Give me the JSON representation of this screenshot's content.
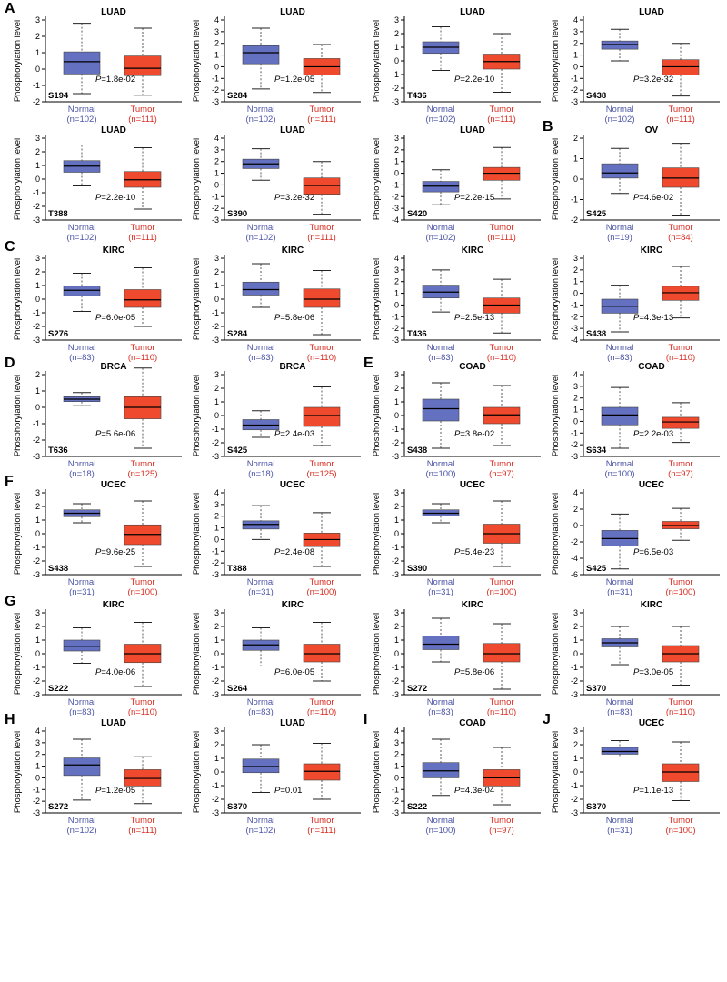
{
  "figure": {
    "ylabel": "Phosphorylation level",
    "group_labels": [
      "Normal",
      "Tumor"
    ],
    "colors": {
      "normal": "#6470c0",
      "tumor": "#f04a2e",
      "normal_text": "#4b54a6",
      "tumor_text": "#d92b1f"
    }
  },
  "chart_data": [
    {
      "type": "box",
      "panel": "A",
      "title": "LUAD",
      "site": "S194",
      "p": "1.8e-02",
      "yticks": [
        -2,
        -1,
        0,
        1,
        2,
        3
      ],
      "ylim": [
        -2,
        3
      ],
      "n": [
        102,
        111
      ],
      "boxes": [
        {
          "wl": -1.5,
          "q1": -0.3,
          "med": 0.45,
          "q3": 1.05,
          "wh": 2.8
        },
        {
          "wl": -1.6,
          "q1": -0.4,
          "med": 0.05,
          "q3": 0.8,
          "wh": 2.5
        }
      ]
    },
    {
      "type": "box",
      "panel": "",
      "title": "LUAD",
      "site": "S284",
      "p": "1.2e-05",
      "yticks": [
        -3,
        -2,
        -1,
        0,
        1,
        2,
        3,
        4
      ],
      "ylim": [
        -3,
        4
      ],
      "n": [
        102,
        111
      ],
      "boxes": [
        {
          "wl": -1.9,
          "q1": 0.25,
          "med": 1.2,
          "q3": 1.8,
          "wh": 3.3
        },
        {
          "wl": -2.2,
          "q1": -0.7,
          "med": 0.0,
          "q3": 0.7,
          "wh": 1.9
        }
      ]
    },
    {
      "type": "box",
      "panel": "",
      "title": "LUAD",
      "site": "T436",
      "p": "2.2e-10",
      "yticks": [
        -3,
        -2,
        -1,
        0,
        1,
        2,
        3
      ],
      "ylim": [
        -3,
        3
      ],
      "n": [
        102,
        111
      ],
      "boxes": [
        {
          "wl": -0.7,
          "q1": 0.55,
          "med": 1.0,
          "q3": 1.4,
          "wh": 2.5
        },
        {
          "wl": -2.3,
          "q1": -0.6,
          "med": -0.05,
          "q3": 0.5,
          "wh": 2.0
        }
      ]
    },
    {
      "type": "box",
      "panel": "",
      "title": "LUAD",
      "site": "S438",
      "p": "3.2e-32",
      "yticks": [
        -3,
        -2,
        -1,
        0,
        1,
        2,
        3,
        4
      ],
      "ylim": [
        -3,
        4
      ],
      "n": [
        102,
        111
      ],
      "boxes": [
        {
          "wl": 0.5,
          "q1": 1.5,
          "med": 1.9,
          "q3": 2.2,
          "wh": 3.2
        },
        {
          "wl": -2.5,
          "q1": -0.7,
          "med": 0.0,
          "q3": 0.6,
          "wh": 2.0
        }
      ]
    },
    {
      "type": "box",
      "panel": "",
      "title": "LUAD",
      "site": "T388",
      "p": "2.2e-10",
      "yticks": [
        -3,
        -2,
        -1,
        0,
        1,
        2,
        3
      ],
      "ylim": [
        -3,
        3
      ],
      "n": [
        102,
        111
      ],
      "boxes": [
        {
          "wl": -0.5,
          "q1": 0.5,
          "med": 0.95,
          "q3": 1.35,
          "wh": 2.5
        },
        {
          "wl": -2.2,
          "q1": -0.6,
          "med": -0.05,
          "q3": 0.55,
          "wh": 2.3
        }
      ]
    },
    {
      "type": "box",
      "panel": "",
      "title": "LUAD",
      "site": "S390",
      "p": "3.2e-32",
      "yticks": [
        -3,
        -2,
        -1,
        0,
        1,
        2,
        3,
        4
      ],
      "ylim": [
        -3,
        4
      ],
      "n": [
        102,
        111
      ],
      "boxes": [
        {
          "wl": 0.4,
          "q1": 1.4,
          "med": 1.8,
          "q3": 2.2,
          "wh": 3.1
        },
        {
          "wl": -2.5,
          "q1": -0.8,
          "med": -0.05,
          "q3": 0.6,
          "wh": 2.0
        }
      ]
    },
    {
      "type": "box",
      "panel": "",
      "title": "LUAD",
      "site": "S420",
      "p": "2.2e-15",
      "yticks": [
        -4,
        -3,
        -2,
        -1,
        0,
        1,
        2,
        3
      ],
      "ylim": [
        -4,
        3
      ],
      "n": [
        102,
        111
      ],
      "boxes": [
        {
          "wl": -2.7,
          "q1": -1.6,
          "med": -1.1,
          "q3": -0.7,
          "wh": 0.3
        },
        {
          "wl": -2.2,
          "q1": -0.6,
          "med": 0.0,
          "q3": 0.5,
          "wh": 2.2
        }
      ]
    },
    {
      "type": "box",
      "panel": "B",
      "title": "OV",
      "site": "S425",
      "p": "4.6e-02",
      "yticks": [
        -2,
        -1,
        0,
        1,
        2
      ],
      "ylim": [
        -2,
        2
      ],
      "n": [
        19,
        84
      ],
      "boxes": [
        {
          "wl": -0.7,
          "q1": 0.05,
          "med": 0.3,
          "q3": 0.75,
          "wh": 1.5
        },
        {
          "wl": -1.8,
          "q1": -0.4,
          "med": 0.05,
          "q3": 0.55,
          "wh": 1.75
        }
      ]
    },
    {
      "type": "box",
      "panel": "C",
      "title": "KIRC",
      "site": "S276",
      "p": "6.0e-05",
      "yticks": [
        -3,
        -2,
        -1,
        0,
        1,
        2,
        3
      ],
      "ylim": [
        -3,
        3
      ],
      "n": [
        83,
        110
      ],
      "boxes": [
        {
          "wl": -0.9,
          "q1": 0.25,
          "med": 0.65,
          "q3": 0.95,
          "wh": 1.9
        },
        {
          "wl": -2.0,
          "q1": -0.6,
          "med": -0.05,
          "q3": 0.7,
          "wh": 2.3
        }
      ]
    },
    {
      "type": "box",
      "panel": "",
      "title": "KIRC",
      "site": "S284",
      "p": "5.8e-06",
      "yticks": [
        -3,
        -2,
        -1,
        0,
        1,
        2,
        3
      ],
      "ylim": [
        -3,
        3
      ],
      "n": [
        83,
        110
      ],
      "boxes": [
        {
          "wl": -0.6,
          "q1": 0.3,
          "med": 0.7,
          "q3": 1.25,
          "wh": 2.6
        },
        {
          "wl": -2.6,
          "q1": -0.6,
          "med": 0.0,
          "q3": 0.75,
          "wh": 2.1
        }
      ]
    },
    {
      "type": "box",
      "panel": "",
      "title": "KIRC",
      "site": "T436",
      "p": "2.5e-13",
      "yticks": [
        -3,
        -2,
        -1,
        0,
        1,
        2,
        3,
        4
      ],
      "ylim": [
        -3,
        4
      ],
      "n": [
        83,
        110
      ],
      "boxes": [
        {
          "wl": -0.6,
          "q1": 0.6,
          "med": 1.1,
          "q3": 1.7,
          "wh": 3.0
        },
        {
          "wl": -2.4,
          "q1": -0.7,
          "med": 0.0,
          "q3": 0.6,
          "wh": 2.2
        }
      ]
    },
    {
      "type": "box",
      "panel": "",
      "title": "KIRC",
      "site": "S438",
      "p": "4.3e-13",
      "yticks": [
        -4,
        -3,
        -2,
        -1,
        0,
        1,
        2,
        3
      ],
      "ylim": [
        -4,
        3
      ],
      "n": [
        83,
        110
      ],
      "boxes": [
        {
          "wl": -3.3,
          "q1": -1.7,
          "med": -1.1,
          "q3": -0.5,
          "wh": 0.7
        },
        {
          "wl": -2.1,
          "q1": -0.6,
          "med": 0.05,
          "q3": 0.6,
          "wh": 2.3
        }
      ]
    },
    {
      "type": "box",
      "panel": "D",
      "title": "BRCA",
      "site": "T636",
      "p": "5.6e-06",
      "yticks": [
        -3,
        -2,
        -1,
        0,
        1,
        2
      ],
      "ylim": [
        -3,
        2
      ],
      "n": [
        18,
        125
      ],
      "boxes": [
        {
          "wl": 0.1,
          "q1": 0.35,
          "med": 0.5,
          "q3": 0.65,
          "wh": 0.9
        },
        {
          "wl": -2.5,
          "q1": -0.7,
          "med": 0.0,
          "q3": 0.65,
          "wh": 2.4
        }
      ]
    },
    {
      "type": "box",
      "panel": "",
      "title": "BRCA",
      "site": "S425",
      "p": "2.4e-03",
      "yticks": [
        -3,
        -2,
        -1,
        0,
        1,
        2,
        3
      ],
      "ylim": [
        -3,
        3
      ],
      "n": [
        18,
        125
      ],
      "boxes": [
        {
          "wl": -1.6,
          "q1": -1.05,
          "med": -0.7,
          "q3": -0.3,
          "wh": 0.35
        },
        {
          "wl": -2.2,
          "q1": -0.8,
          "med": 0.0,
          "q3": 0.6,
          "wh": 2.1
        }
      ]
    },
    {
      "type": "box",
      "panel": "E",
      "title": "COAD",
      "site": "S438",
      "p": "3.8e-02",
      "yticks": [
        -3,
        -2,
        -1,
        0,
        1,
        2,
        3
      ],
      "ylim": [
        -3,
        3
      ],
      "n": [
        100,
        97
      ],
      "boxes": [
        {
          "wl": -2.4,
          "q1": -0.4,
          "med": 0.5,
          "q3": 1.2,
          "wh": 2.4
        },
        {
          "wl": -2.2,
          "q1": -0.6,
          "med": 0.05,
          "q3": 0.6,
          "wh": 2.2
        }
      ]
    },
    {
      "type": "box",
      "panel": "",
      "title": "COAD",
      "site": "S634",
      "p": "2.2e-03",
      "yticks": [
        -3,
        -2,
        -1,
        0,
        1,
        2,
        3,
        4
      ],
      "ylim": [
        -3,
        4
      ],
      "n": [
        100,
        97
      ],
      "boxes": [
        {
          "wl": -2.3,
          "q1": -0.3,
          "med": 0.55,
          "q3": 1.2,
          "wh": 2.9
        },
        {
          "wl": -1.8,
          "q1": -0.6,
          "med": -0.05,
          "q3": 0.35,
          "wh": 1.6
        }
      ]
    },
    {
      "type": "box",
      "panel": "F",
      "title": "UCEC",
      "site": "S438",
      "p": "9.6e-25",
      "yticks": [
        -3,
        -2,
        -1,
        0,
        1,
        2,
        3
      ],
      "ylim": [
        -3,
        3
      ],
      "n": [
        31,
        100
      ],
      "boxes": [
        {
          "wl": 0.8,
          "q1": 1.25,
          "med": 1.5,
          "q3": 1.75,
          "wh": 2.2
        },
        {
          "wl": -2.4,
          "q1": -0.8,
          "med": -0.05,
          "q3": 0.65,
          "wh": 2.4
        }
      ]
    },
    {
      "type": "box",
      "panel": "",
      "title": "UCEC",
      "site": "T388",
      "p": "2.4e-08",
      "yticks": [
        -3,
        -2,
        -1,
        0,
        1,
        2,
        3,
        4
      ],
      "ylim": [
        -3,
        4
      ],
      "n": [
        31,
        100
      ],
      "boxes": [
        {
          "wl": 0.0,
          "q1": 0.9,
          "med": 1.3,
          "q3": 1.6,
          "wh": 2.9
        },
        {
          "wl": -2.3,
          "q1": -0.6,
          "med": 0.0,
          "q3": 0.55,
          "wh": 2.3
        }
      ]
    },
    {
      "type": "box",
      "panel": "",
      "title": "UCEC",
      "site": "S390",
      "p": "5.4e-23",
      "yticks": [
        -3,
        -2,
        -1,
        0,
        1,
        2,
        3
      ],
      "ylim": [
        -3,
        3
      ],
      "n": [
        31,
        100
      ],
      "boxes": [
        {
          "wl": 0.8,
          "q1": 1.3,
          "med": 1.5,
          "q3": 1.75,
          "wh": 2.2
        },
        {
          "wl": -2.4,
          "q1": -0.7,
          "med": 0.0,
          "q3": 0.7,
          "wh": 2.4
        }
      ]
    },
    {
      "type": "box",
      "panel": "",
      "title": "UCEC",
      "site": "S425",
      "p": "6.5e-03",
      "yticks": [
        -6,
        -4,
        -2,
        0,
        2,
        4
      ],
      "ylim": [
        -6,
        4
      ],
      "n": [
        31,
        100
      ],
      "boxes": [
        {
          "wl": -5.3,
          "q1": -2.5,
          "med": -1.6,
          "q3": -0.6,
          "wh": 1.4
        },
        {
          "wl": -1.8,
          "q1": -0.4,
          "med": 0.0,
          "q3": 0.5,
          "wh": 2.1
        }
      ]
    },
    {
      "type": "box",
      "panel": "G",
      "title": "KIRC",
      "site": "S222",
      "p": "4.0e-06",
      "yticks": [
        -3,
        -2,
        -1,
        0,
        1,
        2,
        3
      ],
      "ylim": [
        -3,
        3
      ],
      "n": [
        83,
        110
      ],
      "boxes": [
        {
          "wl": -0.7,
          "q1": 0.2,
          "med": 0.55,
          "q3": 1.0,
          "wh": 1.9
        },
        {
          "wl": -2.4,
          "q1": -0.65,
          "med": 0.0,
          "q3": 0.7,
          "wh": 2.3
        }
      ]
    },
    {
      "type": "box",
      "panel": "",
      "title": "KIRC",
      "site": "S264",
      "p": "6.0e-05",
      "yticks": [
        -3,
        -2,
        -1,
        0,
        1,
        2,
        3
      ],
      "ylim": [
        -3,
        3
      ],
      "n": [
        83,
        110
      ],
      "boxes": [
        {
          "wl": -0.9,
          "q1": 0.25,
          "med": 0.65,
          "q3": 1.0,
          "wh": 1.9
        },
        {
          "wl": -2.0,
          "q1": -0.6,
          "med": 0.0,
          "q3": 0.7,
          "wh": 2.3
        }
      ]
    },
    {
      "type": "box",
      "panel": "",
      "title": "KIRC",
      "site": "S272",
      "p": "5.8e-06",
      "yticks": [
        -3,
        -2,
        -1,
        0,
        1,
        2,
        3
      ],
      "ylim": [
        -3,
        3
      ],
      "n": [
        83,
        110
      ],
      "boxes": [
        {
          "wl": -0.6,
          "q1": 0.3,
          "med": 0.7,
          "q3": 1.3,
          "wh": 2.6
        },
        {
          "wl": -2.6,
          "q1": -0.6,
          "med": 0.0,
          "q3": 0.75,
          "wh": 2.2
        }
      ]
    },
    {
      "type": "box",
      "panel": "",
      "title": "KIRC",
      "site": "S370",
      "p": "3.0e-05",
      "yticks": [
        -3,
        -2,
        -1,
        0,
        1,
        2,
        3
      ],
      "ylim": [
        -3,
        3
      ],
      "n": [
        83,
        110
      ],
      "boxes": [
        {
          "wl": -0.8,
          "q1": 0.5,
          "med": 0.8,
          "q3": 1.1,
          "wh": 2.0
        },
        {
          "wl": -2.3,
          "q1": -0.6,
          "med": 0.0,
          "q3": 0.6,
          "wh": 2.0
        }
      ]
    },
    {
      "type": "box",
      "panel": "H",
      "title": "LUAD",
      "site": "S272",
      "p": "1.2e-05",
      "yticks": [
        -3,
        -2,
        -1,
        0,
        1,
        2,
        3,
        4
      ],
      "ylim": [
        -3,
        4
      ],
      "n": [
        102,
        111
      ],
      "boxes": [
        {
          "wl": -1.9,
          "q1": 0.2,
          "med": 1.1,
          "q3": 1.7,
          "wh": 3.3
        },
        {
          "wl": -2.2,
          "q1": -0.7,
          "med": -0.05,
          "q3": 0.7,
          "wh": 1.8
        }
      ]
    },
    {
      "type": "box",
      "panel": "",
      "title": "LUAD",
      "site": "S370",
      "p": "0.01",
      "yticks": [
        -3,
        -2,
        -1,
        0,
        1,
        2,
        3
      ],
      "ylim": [
        -3,
        3
      ],
      "n": [
        102,
        111
      ],
      "boxes": [
        {
          "wl": -1.5,
          "q1": -0.05,
          "med": 0.4,
          "q3": 0.95,
          "wh": 2.0
        },
        {
          "wl": -2.0,
          "q1": -0.6,
          "med": 0.05,
          "q3": 0.6,
          "wh": 2.1
        }
      ]
    },
    {
      "type": "box",
      "panel": "I",
      "title": "COAD",
      "site": "S222",
      "p": "4.3e-04",
      "yticks": [
        -3,
        -2,
        -1,
        0,
        1,
        2,
        3,
        4
      ],
      "ylim": [
        -3,
        4
      ],
      "n": [
        100,
        97
      ],
      "boxes": [
        {
          "wl": -1.5,
          "q1": 0.0,
          "med": 0.6,
          "q3": 1.3,
          "wh": 3.3
        },
        {
          "wl": -2.3,
          "q1": -0.7,
          "med": 0.0,
          "q3": 0.7,
          "wh": 2.6
        }
      ]
    },
    {
      "type": "box",
      "panel": "J",
      "title": "UCEC",
      "site": "S370",
      "p": "1.1e-13",
      "yticks": [
        -3,
        -2,
        -1,
        0,
        1,
        2,
        3
      ],
      "ylim": [
        -3,
        3
      ],
      "n": [
        31,
        100
      ],
      "boxes": [
        {
          "wl": 1.1,
          "q1": 1.3,
          "med": 1.5,
          "q3": 1.8,
          "wh": 2.3
        },
        {
          "wl": -2.1,
          "q1": -0.7,
          "med": 0.0,
          "q3": 0.6,
          "wh": 2.2
        }
      ]
    }
  ]
}
